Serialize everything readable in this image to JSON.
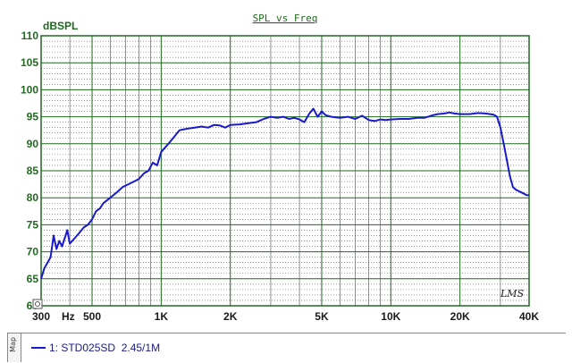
{
  "chart_data": {
    "type": "line",
    "title": "SPL vs Freq",
    "ylabel": "dBSPL",
    "xlabel": "Hz",
    "x_scale": "log",
    "xlim": [
      300,
      40000
    ],
    "ylim": [
      60,
      110
    ],
    "yticks": [
      "110",
      "105",
      "100",
      "95",
      "90",
      "85",
      "80",
      "75",
      "70",
      "65",
      "60"
    ],
    "xtick_labels": [
      {
        "value": 300,
        "label": "300"
      },
      {
        "value": 500,
        "label": "500"
      },
      {
        "value": 1000,
        "label": "1K"
      },
      {
        "value": 2000,
        "label": "2K"
      },
      {
        "value": 5000,
        "label": "5K"
      },
      {
        "value": 10000,
        "label": "10K"
      },
      {
        "value": 20000,
        "label": "20K"
      },
      {
        "value": 40000,
        "label": "40K"
      }
    ],
    "grid": true,
    "annotation": "LMS",
    "series": [
      {
        "name": "1: STD025SD  2.45/1M",
        "color": "#1a1acc",
        "points": [
          [
            300,
            65
          ],
          [
            310,
            67
          ],
          [
            320,
            68
          ],
          [
            330,
            69
          ],
          [
            340,
            73
          ],
          [
            350,
            70.5
          ],
          [
            360,
            72
          ],
          [
            370,
            71
          ],
          [
            380,
            72.5
          ],
          [
            390,
            74
          ],
          [
            400,
            71.5
          ],
          [
            420,
            72.5
          ],
          [
            440,
            73.5
          ],
          [
            460,
            74.5
          ],
          [
            480,
            75
          ],
          [
            500,
            76
          ],
          [
            520,
            77.5
          ],
          [
            540,
            78
          ],
          [
            560,
            79
          ],
          [
            600,
            80
          ],
          [
            640,
            81
          ],
          [
            680,
            82
          ],
          [
            720,
            82.5
          ],
          [
            760,
            83
          ],
          [
            800,
            83.5
          ],
          [
            840,
            84.5
          ],
          [
            880,
            85
          ],
          [
            920,
            86.5
          ],
          [
            960,
            86
          ],
          [
            1000,
            88.5
          ],
          [
            1050,
            89.5
          ],
          [
            1100,
            90.5
          ],
          [
            1150,
            91.5
          ],
          [
            1200,
            92.5
          ],
          [
            1300,
            92.8
          ],
          [
            1400,
            93
          ],
          [
            1500,
            93.2
          ],
          [
            1600,
            93
          ],
          [
            1700,
            93.5
          ],
          [
            1800,
            93.4
          ],
          [
            1900,
            93
          ],
          [
            2000,
            93.5
          ],
          [
            2200,
            93.6
          ],
          [
            2400,
            93.8
          ],
          [
            2600,
            94
          ],
          [
            2800,
            94.6
          ],
          [
            3000,
            95
          ],
          [
            3200,
            94.8
          ],
          [
            3400,
            95
          ],
          [
            3600,
            94.6
          ],
          [
            3800,
            94.8
          ],
          [
            4000,
            94.5
          ],
          [
            4200,
            94
          ],
          [
            4400,
            95.5
          ],
          [
            4600,
            96.5
          ],
          [
            4800,
            95
          ],
          [
            5000,
            96
          ],
          [
            5200,
            95.3
          ],
          [
            5500,
            95
          ],
          [
            6000,
            94.8
          ],
          [
            6500,
            95
          ],
          [
            7000,
            94.6
          ],
          [
            7500,
            95.2
          ],
          [
            8000,
            94.4
          ],
          [
            8500,
            94.2
          ],
          [
            9000,
            94.5
          ],
          [
            9500,
            94.4
          ],
          [
            10000,
            94.5
          ],
          [
            11000,
            94.6
          ],
          [
            12000,
            94.6
          ],
          [
            13000,
            94.8
          ],
          [
            14000,
            94.8
          ],
          [
            15000,
            95.2
          ],
          [
            16000,
            95.5
          ],
          [
            17000,
            95.6
          ],
          [
            18000,
            95.8
          ],
          [
            19000,
            95.6
          ],
          [
            20000,
            95.5
          ],
          [
            22000,
            95.5
          ],
          [
            24000,
            95.7
          ],
          [
            26000,
            95.6
          ],
          [
            28000,
            95.4
          ],
          [
            29000,
            95
          ],
          [
            30000,
            93
          ],
          [
            31000,
            90
          ],
          [
            32000,
            87
          ],
          [
            33000,
            84
          ],
          [
            34000,
            82
          ],
          [
            35000,
            81.5
          ],
          [
            37000,
            81
          ],
          [
            39000,
            80.5
          ],
          [
            40000,
            80.5
          ]
        ]
      }
    ]
  },
  "legend": {
    "tab_label": "Map",
    "entry": "1: STD025SD  2.45/1M"
  }
}
